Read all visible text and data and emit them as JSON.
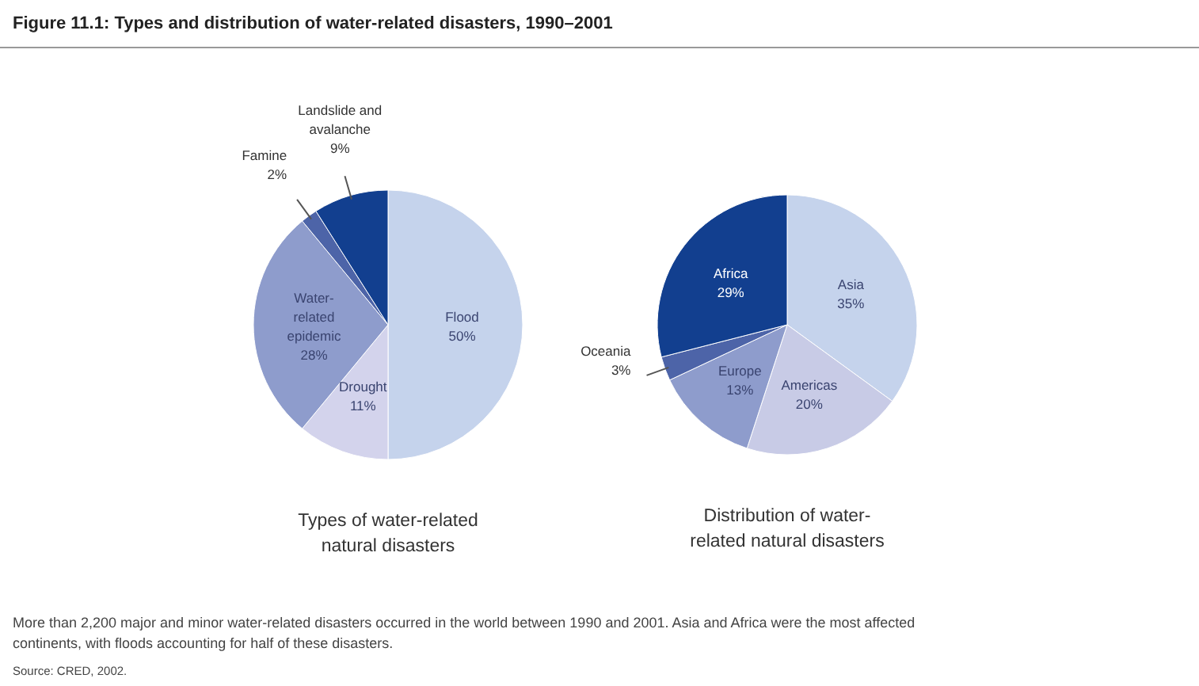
{
  "chart_data": [
    {
      "type": "pie",
      "title": "Types of water-related natural disasters",
      "categories": [
        "Flood",
        "Drought",
        "Water-related epidemic",
        "Famine",
        "Landslide and avalanche"
      ],
      "values": [
        50,
        11,
        28,
        2,
        9
      ],
      "colors": [
        "#c5d3ec",
        "#d3d3ec",
        "#8e9ccc",
        "#4d64a8",
        "#123f8f"
      ],
      "value_labels": [
        "50%",
        "11%",
        "28%",
        "2%",
        "9%"
      ],
      "annotations": [
        "Figure 11.1: Types and distribution of water-related disasters, 1990–2001"
      ]
    },
    {
      "type": "pie",
      "title": "Distribution of water-related natural disasters",
      "categories": [
        "Asia",
        "Americas",
        "Europe",
        "Oceania",
        "Africa"
      ],
      "values": [
        35,
        20,
        13,
        3,
        29
      ],
      "colors": [
        "#c5d3ec",
        "#c8cbe6",
        "#8e9ccc",
        "#4d64a8",
        "#123f8f"
      ],
      "value_labels": [
        "35%",
        "20%",
        "13%",
        "3%",
        "29%"
      ],
      "annotations": [
        "More than 2,200 major and minor water-related disasters occurred in the world between 1990 and 2001. Asia and Africa were the most affected continents, with floods accounting for half of these disasters.",
        "Source: CRED, 2002."
      ]
    }
  ]
}
